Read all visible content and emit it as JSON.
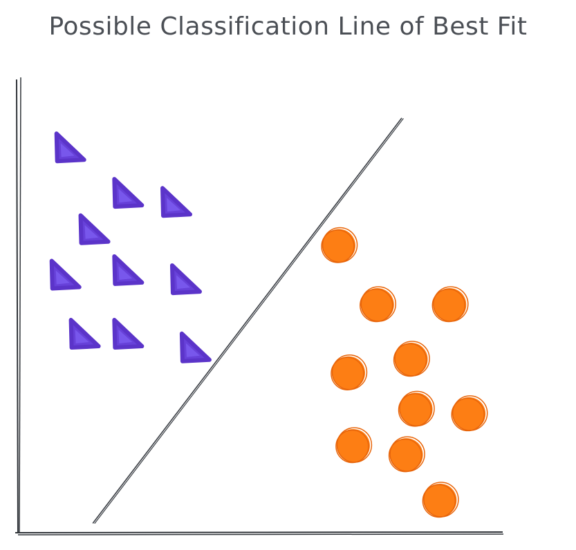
{
  "title": "Possible Classification Line of Best Fit",
  "colors": {
    "class_a": "#6741d9",
    "class_b": "#fd7e14",
    "ink": "#3b3f45"
  },
  "chart_data": {
    "type": "scatter",
    "title": "Possible Classification Line of Best Fit",
    "xlabel": "",
    "ylabel": "",
    "xlim": [
      0,
      100
    ],
    "ylim": [
      0,
      100
    ],
    "grid": false,
    "series": [
      {
        "marker": "triangle",
        "color": "#6741d9",
        "points": [
          [
            10,
            84
          ],
          [
            22,
            74
          ],
          [
            32,
            72
          ],
          [
            15,
            66
          ],
          [
            9,
            56
          ],
          [
            22,
            57
          ],
          [
            34,
            55
          ],
          [
            13,
            43
          ],
          [
            22,
            43
          ],
          [
            36,
            40
          ]
        ]
      },
      {
        "marker": "circle",
        "color": "#fd7e14",
        "points": [
          [
            66,
            63
          ],
          [
            74,
            50
          ],
          [
            89,
            50
          ],
          [
            81,
            38
          ],
          [
            68,
            35
          ],
          [
            82,
            27
          ],
          [
            93,
            26
          ],
          [
            69,
            19
          ],
          [
            80,
            17
          ],
          [
            87,
            7
          ]
        ]
      }
    ],
    "decision_line": {
      "from": [
        15,
        2
      ],
      "to": [
        79,
        91
      ]
    }
  }
}
